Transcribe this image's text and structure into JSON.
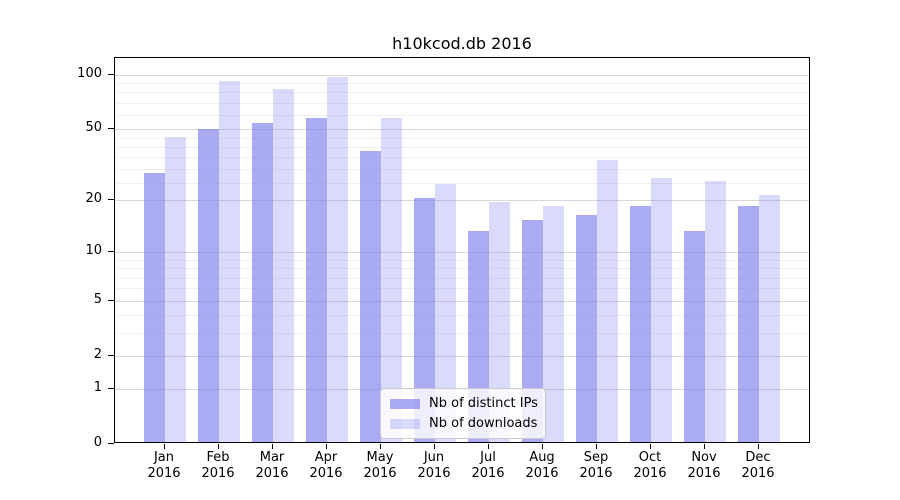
{
  "title": "h10kcod.db 2016",
  "chart_data": {
    "type": "bar",
    "categories": [
      "Jan 2016",
      "Feb 2016",
      "Mar 2016",
      "Apr 2016",
      "May 2016",
      "Jun 2016",
      "Jul 2016",
      "Aug 2016",
      "Sep 2016",
      "Oct 2016",
      "Nov 2016",
      "Dec 2016"
    ],
    "month_labels": [
      "Jan",
      "Feb",
      "Mar",
      "Apr",
      "May",
      "Jun",
      "Jul",
      "Aug",
      "Sep",
      "Oct",
      "Nov",
      "Dec"
    ],
    "year_label": "2016",
    "series": [
      {
        "name": "Nb of distinct IPs",
        "color": "rgba(119,119,238,0.62)",
        "values": [
          28,
          49,
          53,
          56,
          37,
          20,
          13,
          15,
          16,
          18,
          13,
          18
        ]
      },
      {
        "name": "Nb of downloads",
        "color": "rgba(119,119,238,0.27)",
        "values": [
          44,
          90,
          81,
          95,
          56,
          24,
          19,
          18,
          33,
          26,
          25,
          21
        ]
      }
    ],
    "yscale": "log1p",
    "ylim": [
      0,
      123
    ],
    "y_major_ticks": [
      0,
      1,
      2,
      5,
      10,
      20,
      50,
      100
    ],
    "y_minor_ticks": [
      3,
      4,
      6,
      7,
      8,
      9,
      25,
      30,
      35,
      40,
      45,
      60,
      70,
      80,
      90
    ],
    "grid": true,
    "legend_position": "lower center",
    "colors": {
      "grid_major": "#d9d9d9",
      "grid_minor": "#f1f1f1",
      "axis_frame": "#000000",
      "text": "#000000"
    }
  }
}
